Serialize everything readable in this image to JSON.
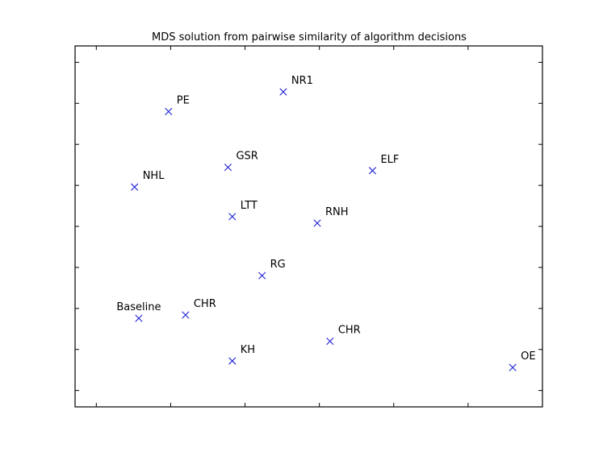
{
  "chart_data": {
    "type": "scatter",
    "title": "MDS solution from pairwise similarity of algorithm decisions",
    "xlabel": "",
    "ylabel": "",
    "grid": false,
    "legend": "none",
    "marker": "x",
    "marker_color": "#1f1fd6",
    "points": [
      {
        "label": "NR1",
        "x": 0.44,
        "y": 0.91
      },
      {
        "label": "PE",
        "x": 0.17,
        "y": 0.85
      },
      {
        "label": "GSR",
        "x": 0.31,
        "y": 0.68
      },
      {
        "label": "ELF",
        "x": 0.65,
        "y": 0.67
      },
      {
        "label": "NHL",
        "x": 0.09,
        "y": 0.62
      },
      {
        "label": "LTT",
        "x": 0.32,
        "y": 0.53
      },
      {
        "label": "RNH",
        "x": 0.52,
        "y": 0.51
      },
      {
        "label": "RG",
        "x": 0.39,
        "y": 0.35
      },
      {
        "label": "Baseline",
        "x": 0.1,
        "y": 0.22
      },
      {
        "label": "CHR",
        "x": 0.21,
        "y": 0.23
      },
      {
        "label": "CHR",
        "x": 0.55,
        "y": 0.15
      },
      {
        "label": "KH",
        "x": 0.32,
        "y": 0.09
      },
      {
        "label": "OE",
        "x": 0.98,
        "y": 0.07
      }
    ],
    "xlim": [
      -0.05,
      1.05
    ],
    "ylim": [
      -0.05,
      1.05
    ],
    "xticks": [
      0.0,
      0.175,
      0.35,
      0.525,
      0.7,
      0.875
    ],
    "yticks": [
      0.0,
      0.125,
      0.25,
      0.375,
      0.5,
      0.625,
      0.75,
      0.875,
      1.0
    ]
  }
}
